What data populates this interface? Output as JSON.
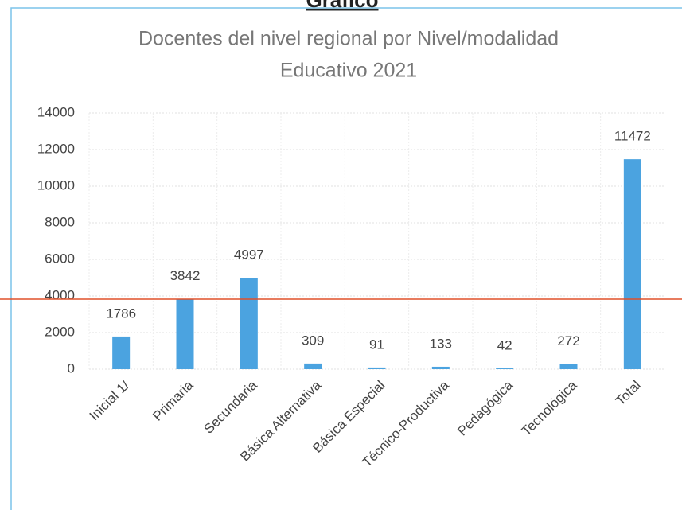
{
  "heading": "Gráfico",
  "chart_data": {
    "type": "bar",
    "title": [
      "Docentes del nivel regional por Nivel/modalidad",
      "Educativo 2021"
    ],
    "categories": [
      "Inicial 1/",
      "Primaria",
      "Secundaria",
      "Básica Alternativa",
      "Básica Especial",
      "Técnico-Productiva",
      "Pedagógica",
      "Tecnológica",
      "Total"
    ],
    "values": [
      1786,
      3842,
      4997,
      309,
      91,
      133,
      42,
      272,
      11472
    ],
    "color": "#4ba3e0",
    "ylim": [
      0,
      14000
    ],
    "yticks": [
      0,
      2000,
      4000,
      6000,
      8000,
      10000,
      12000,
      14000
    ],
    "grid": true
  }
}
